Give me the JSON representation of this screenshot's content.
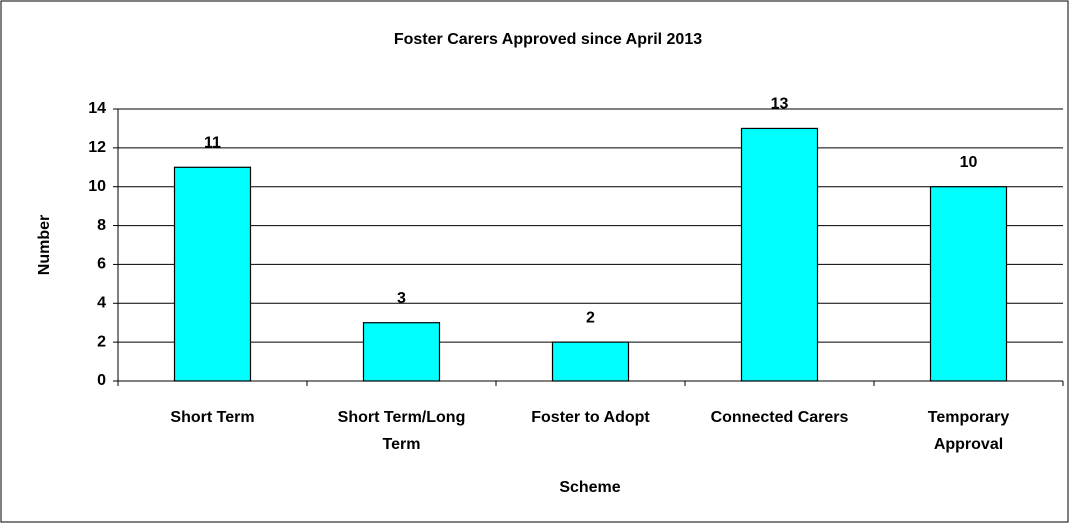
{
  "chart_data": {
    "type": "bar",
    "title": "Foster Carers Approved since April 2013",
    "x_label": "Scheme",
    "y_label": "Number",
    "categories": [
      "Short Term",
      "Short Term/Long Term",
      "Foster to Adopt",
      "Connected Carers",
      "Temporary Approval"
    ],
    "values": [
      11,
      3,
      2,
      13,
      10
    ],
    "color": "#00ffff",
    "ylim": [
      0,
      14
    ],
    "yticks": [
      0,
      2,
      4,
      6,
      8,
      10,
      12,
      14
    ],
    "grid": true
  }
}
